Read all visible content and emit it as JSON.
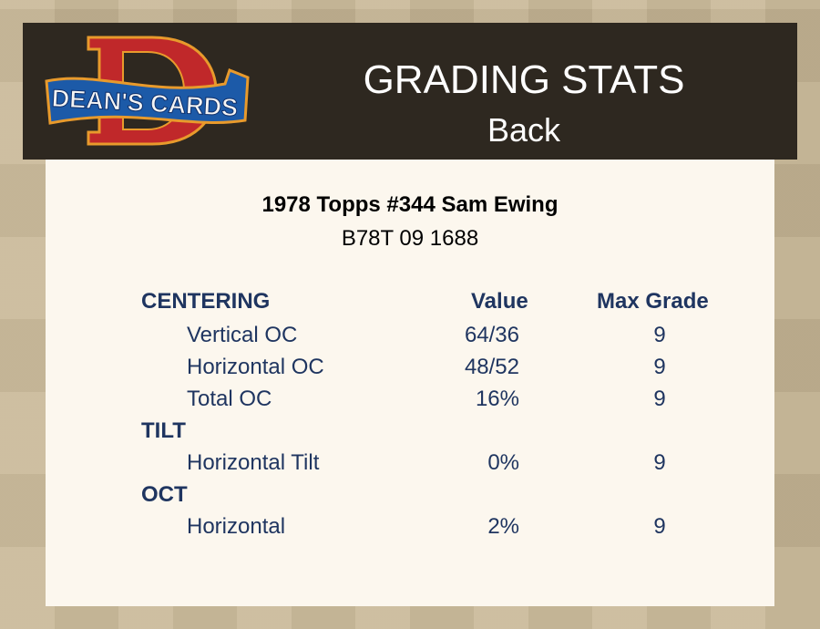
{
  "header": {
    "logo_text": "DEAN'S CARDS",
    "title": "GRADING STATS",
    "subtitle": "Back"
  },
  "card": {
    "name": "1978 Topps #344 Sam Ewing",
    "cert": "B78T 09 1688"
  },
  "table": {
    "col_value": "Value",
    "col_max": "Max Grade",
    "sections": [
      {
        "title": "CENTERING",
        "rows": [
          {
            "label": "Vertical OC",
            "value": "64/36",
            "max": "9"
          },
          {
            "label": "Horizontal OC",
            "value": "48/52",
            "max": "9"
          },
          {
            "label": "Total OC",
            "value": "16%",
            "max": "9"
          }
        ]
      },
      {
        "title": "TILT",
        "rows": [
          {
            "label": "Horizontal Tilt",
            "value": "0%",
            "max": "9"
          }
        ]
      },
      {
        "title": "OCT",
        "rows": [
          {
            "label": "Horizontal",
            "value": "2%",
            "max": "9"
          }
        ]
      }
    ]
  },
  "colors": {
    "header_bg": "#2e2820",
    "panel_bg": "#fcf7ee",
    "text_navy": "#1f3560",
    "logo_red": "#c0282a",
    "logo_blue": "#1c5aa8"
  }
}
